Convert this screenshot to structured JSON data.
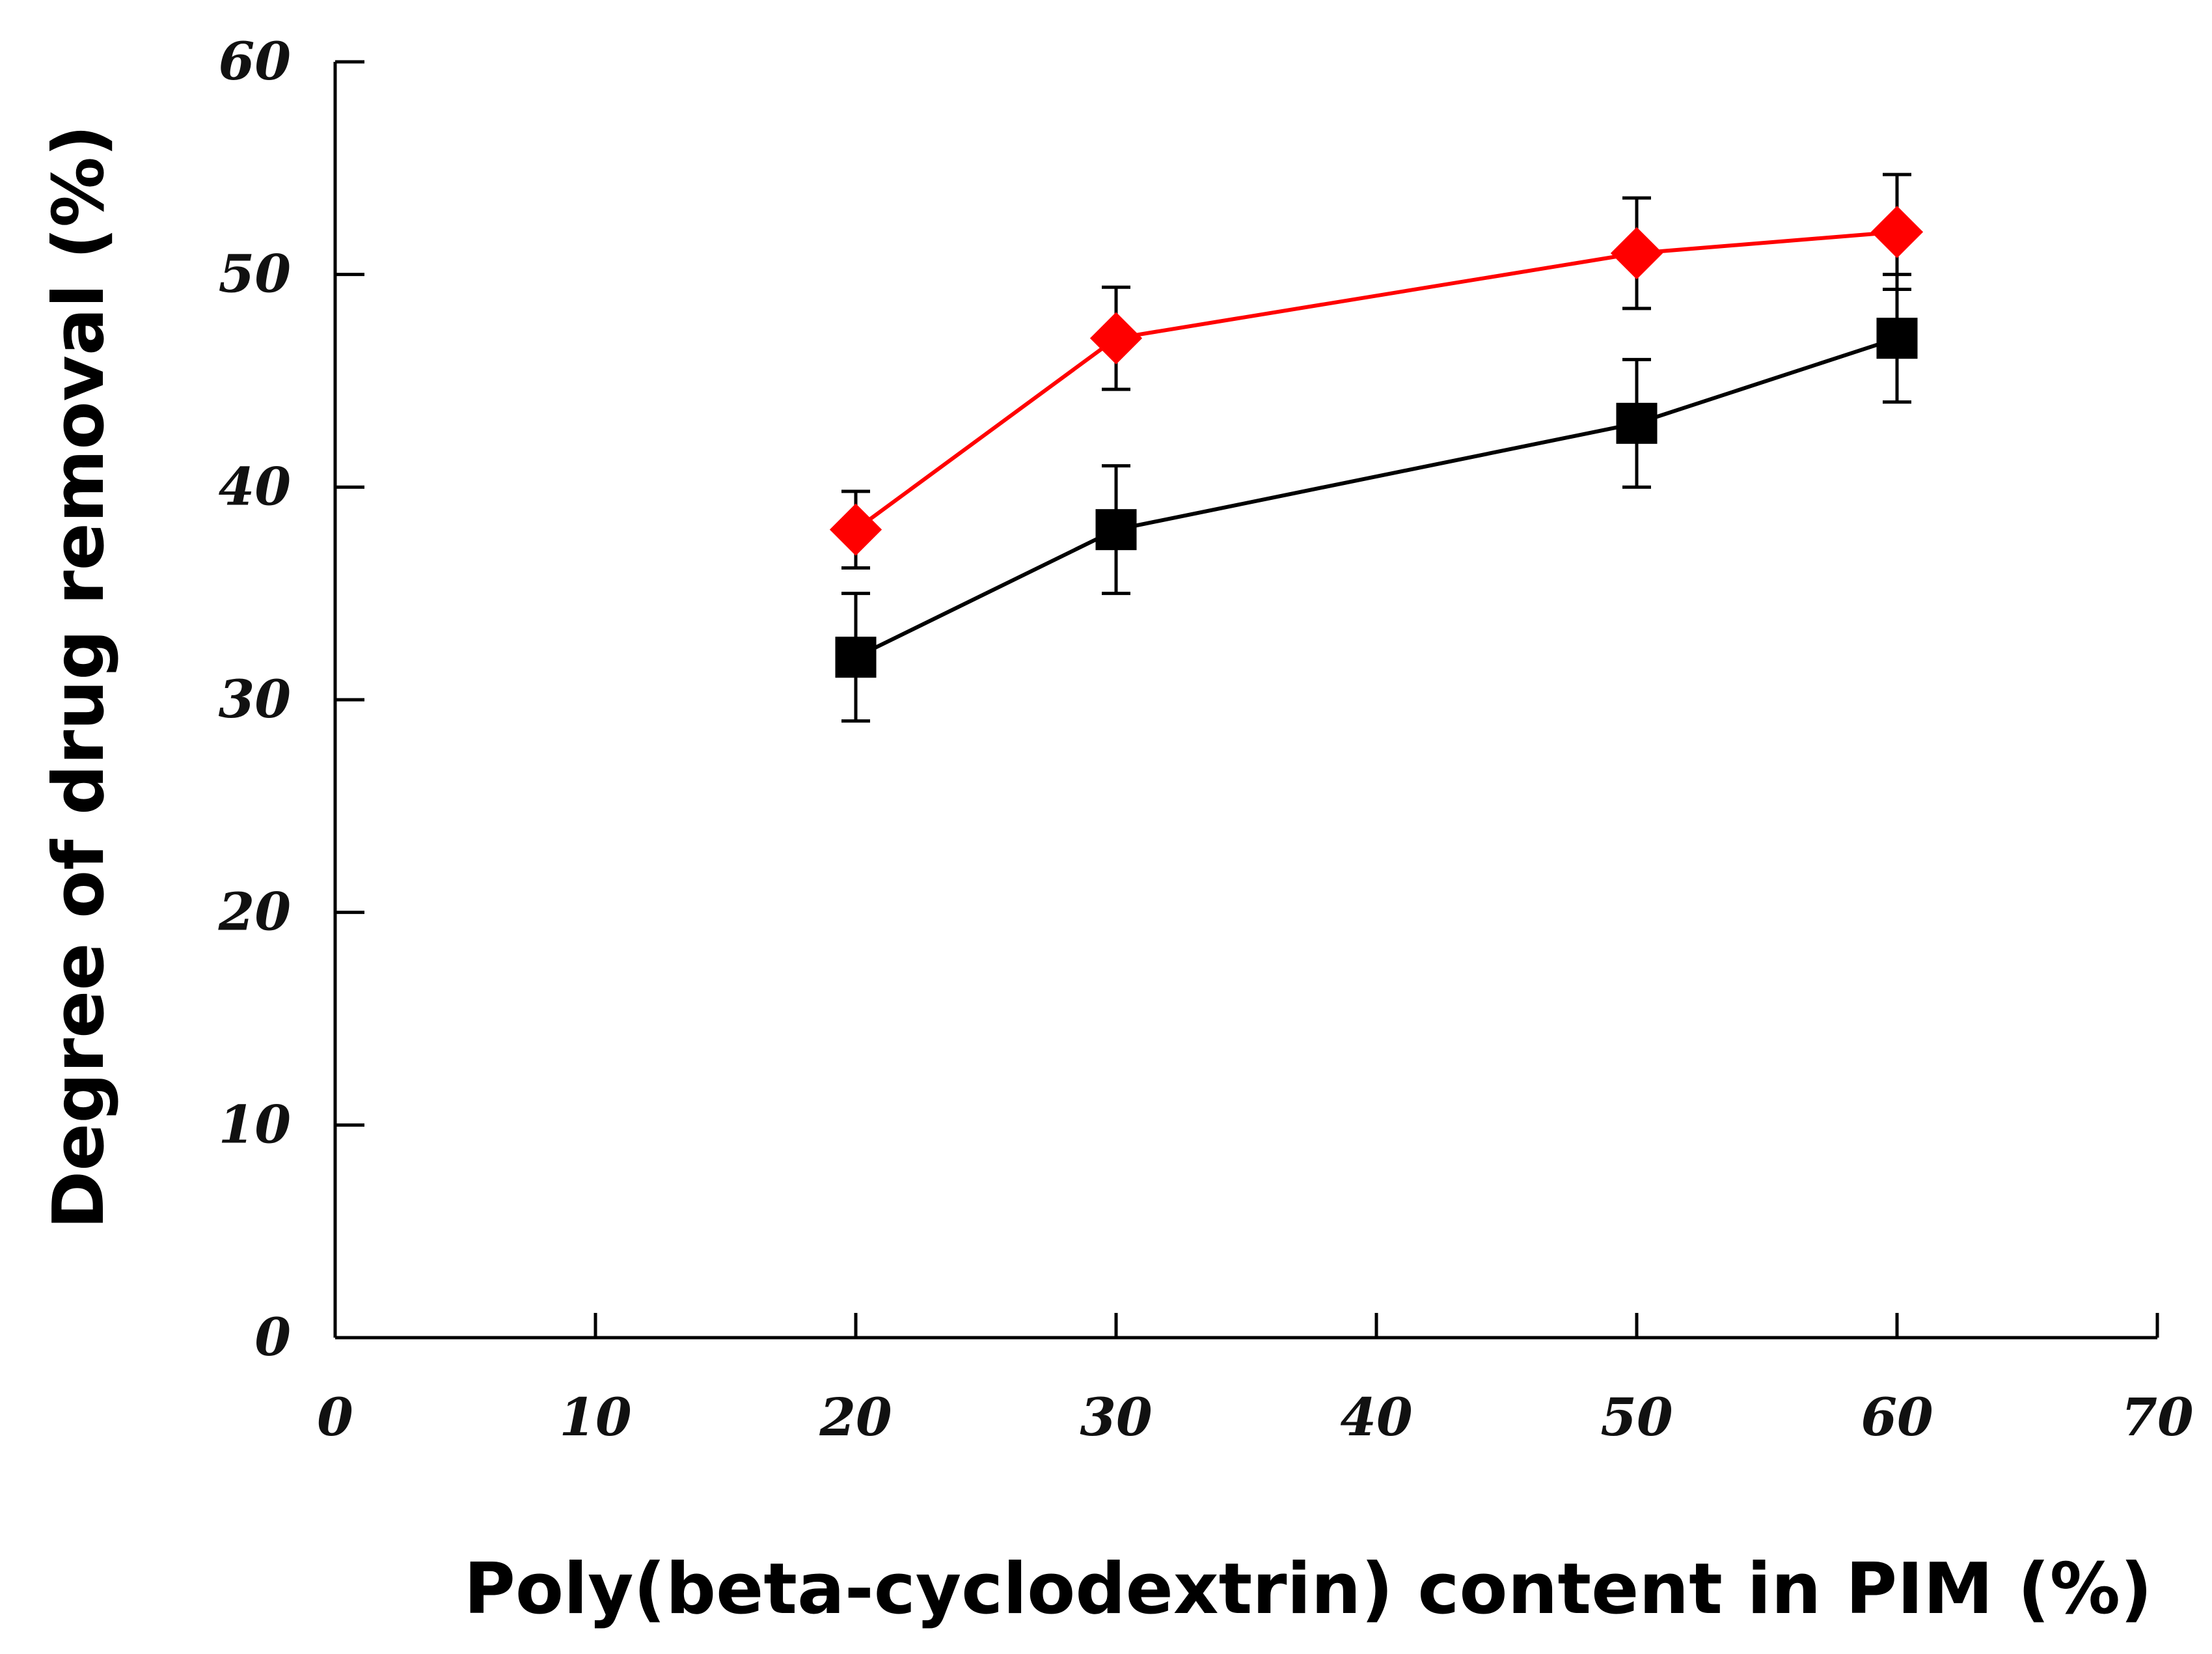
{
  "chart_data": {
    "type": "line",
    "title": "",
    "xlabel": "Poly(beta-cyclodextrin) content in PIM (%)",
    "ylabel": "Degree of drug removal (%)",
    "xlim": [
      0,
      70
    ],
    "ylim": [
      0,
      60
    ],
    "xticks": [
      0,
      10,
      20,
      30,
      40,
      50,
      60,
      70
    ],
    "yticks": [
      0,
      10,
      20,
      30,
      40,
      50,
      60
    ],
    "grid": false,
    "legend": "none",
    "series": [
      {
        "name": "red-diamond-series",
        "color": "#ff0000",
        "marker": "diamond",
        "x": [
          20,
          30,
          50,
          60
        ],
        "y": [
          38,
          47,
          51,
          52
        ],
        "err": [
          1.8,
          2.4,
          2.6,
          2.7
        ]
      },
      {
        "name": "black-square-series",
        "color": "#000000",
        "marker": "square",
        "x": [
          20,
          30,
          50,
          60
        ],
        "y": [
          32,
          38,
          43,
          47
        ],
        "err": [
          3,
          3,
          3,
          3
        ]
      }
    ]
  }
}
